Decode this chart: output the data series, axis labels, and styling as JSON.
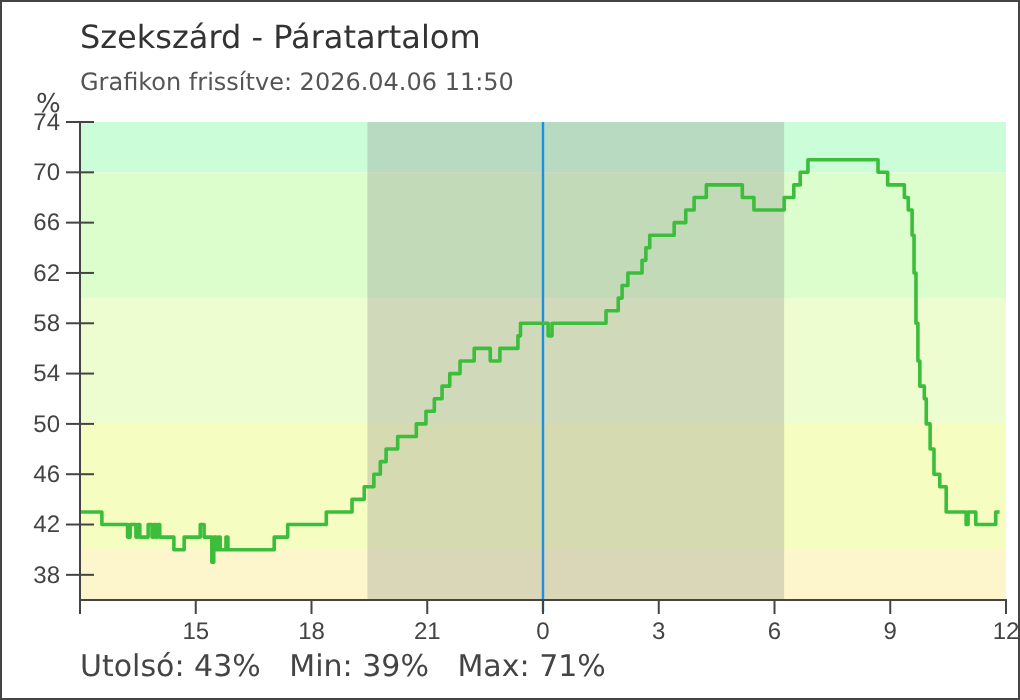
{
  "chart_data": {
    "type": "step",
    "title": "Szekszárd - Páratartalom",
    "subtitle": "Grafikon frissítve: 2026.04.06 11:50",
    "ylabel": "%",
    "annotations": [
      "Utolsó: 43%   Min: 39%   Max: 71%"
    ],
    "xlim": [
      "2026-04-05T12:00",
      "2026-04-06T12:00"
    ],
    "xticks": [
      {
        "value": "2026-04-05T12:00",
        "label": null
      },
      {
        "value": "2026-04-05T15:00",
        "label": "15"
      },
      {
        "value": "2026-04-05T18:00",
        "label": "18"
      },
      {
        "value": "2026-04-05T21:00",
        "label": "21"
      },
      {
        "value": "2026-04-06T00:00",
        "label": "0"
      },
      {
        "value": "2026-04-06T03:00",
        "label": "3"
      },
      {
        "value": "2026-04-06T06:00",
        "label": "6"
      },
      {
        "value": "2026-04-06T09:00",
        "label": "9"
      },
      {
        "value": "2026-04-06T12:00",
        "label": "12"
      }
    ],
    "ylim": [
      36,
      74
    ],
    "yticks": [
      38,
      42,
      46,
      50,
      54,
      58,
      62,
      66,
      70,
      74
    ],
    "bands": [
      {
        "axis": "y",
        "from": 70,
        "to": 74,
        "color": "#ccfdd9"
      },
      {
        "axis": "y",
        "from": 60,
        "to": 70,
        "color": "#dcfdcc"
      },
      {
        "axis": "y",
        "from": 50,
        "to": 60,
        "color": "#eefdd0"
      },
      {
        "axis": "y",
        "from": 40,
        "to": 50,
        "color": "#f5fdc0"
      },
      {
        "axis": "y",
        "from": 36,
        "to": 40,
        "color": "#fdf6cc"
      },
      {
        "axis": "x",
        "from": "2026-04-05T19:27",
        "to": "2026-04-06T06:15",
        "color": "#8a8a8a"
      }
    ],
    "ref_lines": [
      {
        "axis": "x",
        "value": "2026-04-06T00:00",
        "color": "#1e90e0"
      }
    ],
    "series": [
      {
        "color": "#3cbe3c",
        "x": [
          "2026-04-05T12:00",
          "2026-04-05T12:34",
          "2026-04-05T13:14",
          "2026-04-05T13:18",
          "2026-04-05T13:27",
          "2026-04-05T13:30",
          "2026-04-05T13:33",
          "2026-04-05T13:46",
          "2026-04-05T13:52",
          "2026-04-05T13:55",
          "2026-04-05T13:58",
          "2026-04-05T14:01",
          "2026-04-05T14:04",
          "2026-04-05T14:26",
          "2026-04-05T14:42",
          "2026-04-05T15:07",
          "2026-04-05T15:13",
          "2026-04-05T15:25",
          "2026-04-05T15:28",
          "2026-04-05T15:32",
          "2026-04-05T15:35",
          "2026-04-05T15:38",
          "2026-04-05T15:47",
          "2026-04-05T15:50",
          "2026-04-05T17:02",
          "2026-04-05T17:23",
          "2026-04-05T18:23",
          "2026-04-05T19:03",
          "2026-04-05T19:22",
          "2026-04-05T19:37",
          "2026-04-05T19:47",
          "2026-04-05T19:56",
          "2026-04-05T20:14",
          "2026-04-05T20:43",
          "2026-04-05T20:58",
          "2026-04-05T21:11",
          "2026-04-05T21:23",
          "2026-04-05T21:35",
          "2026-04-05T21:51",
          "2026-04-05T22:13",
          "2026-04-05T22:38",
          "2026-04-05T22:53",
          "2026-04-05T23:21",
          "2026-04-05T23:25",
          "2026-04-06T00:08",
          "2026-04-06T00:14",
          "2026-04-06T01:38",
          "2026-04-06T01:57",
          "2026-04-06T02:03",
          "2026-04-06T02:12",
          "2026-04-06T02:34",
          "2026-04-06T02:40",
          "2026-04-06T02:46",
          "2026-04-06T03:24",
          "2026-04-06T03:42",
          "2026-04-06T03:55",
          "2026-04-06T04:14",
          "2026-04-06T05:10",
          "2026-04-06T05:28",
          "2026-04-06T06:15",
          "2026-04-06T06:30",
          "2026-04-06T06:40",
          "2026-04-06T06:52",
          "2026-04-06T08:41",
          "2026-04-06T08:56",
          "2026-04-06T09:22",
          "2026-04-06T09:28",
          "2026-04-06T09:34",
          "2026-04-06T09:37",
          "2026-04-06T09:40",
          "2026-04-06T09:43",
          "2026-04-06T09:46",
          "2026-04-06T09:53",
          "2026-04-06T09:56",
          "2026-04-06T10:02",
          "2026-04-06T10:08",
          "2026-04-06T10:17",
          "2026-04-06T10:27",
          "2026-04-06T10:58",
          "2026-04-06T11:01",
          "2026-04-06T11:13",
          "2026-04-06T11:44",
          "2026-04-06T11:50"
        ],
        "values": [
          43,
          42,
          41,
          42,
          41,
          42,
          41,
          42,
          41,
          42,
          41,
          42,
          41,
          40,
          41,
          42,
          41,
          39,
          41,
          40,
          41,
          40,
          41,
          40,
          41,
          42,
          43,
          44,
          45,
          46,
          47,
          48,
          49,
          50,
          51,
          52,
          53,
          54,
          55,
          56,
          55,
          56,
          57,
          58,
          57,
          58,
          59,
          60,
          61,
          62,
          63,
          64,
          65,
          66,
          67,
          68,
          69,
          68,
          67,
          68,
          69,
          70,
          71,
          70,
          69,
          68,
          67,
          65,
          62,
          58,
          55,
          53,
          52,
          50,
          48,
          46,
          45,
          43,
          42,
          43,
          42,
          43,
          43
        ]
      }
    ]
  }
}
